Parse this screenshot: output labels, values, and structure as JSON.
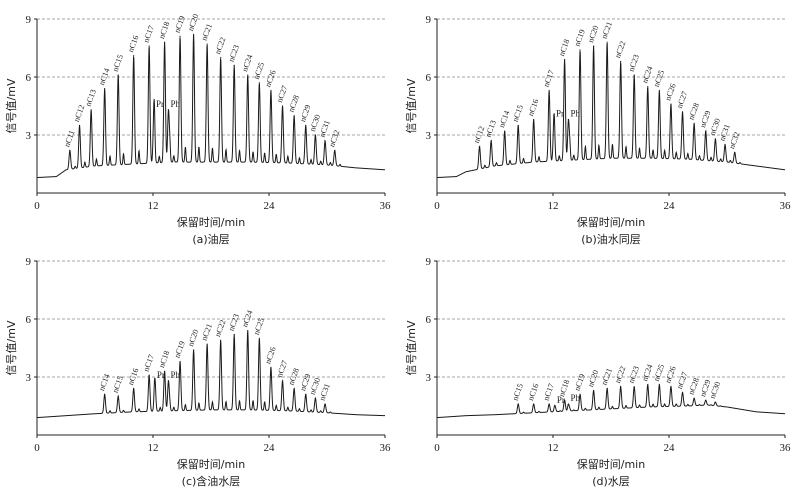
{
  "chart_data": [
    {
      "type": "line",
      "caption": "(a)油层",
      "xlabel": "保留时间/min",
      "ylabel": "信号值/mV",
      "xlim": [
        0,
        36
      ],
      "ylim": [
        0,
        9
      ],
      "xticks": [
        "0",
        "12",
        "24",
        "36"
      ],
      "yticks": [
        "3",
        "6",
        "9"
      ],
      "grid": "dashed horizontal at 3, 6, 9",
      "baseline": {
        "x": [
          0,
          2,
          3,
          6,
          10,
          14,
          18,
          22,
          26,
          30,
          33,
          36
        ],
        "y": [
          0.8,
          0.85,
          1.2,
          1.4,
          1.5,
          1.6,
          1.6,
          1.6,
          1.55,
          1.45,
          1.3,
          1.2
        ]
      },
      "peaks": [
        {
          "label": "nC11",
          "x": 3.4,
          "y": 2.2
        },
        {
          "label": "nC12",
          "x": 4.4,
          "y": 3.5
        },
        {
          "label": "nC13",
          "x": 5.6,
          "y": 4.3
        },
        {
          "label": "nC14",
          "x": 7.0,
          "y": 5.4
        },
        {
          "label": "nC15",
          "x": 8.4,
          "y": 6.1
        },
        {
          "label": "nC16",
          "x": 10.0,
          "y": 7.1
        },
        {
          "label": "nC17",
          "x": 11.6,
          "y": 7.6
        },
        {
          "label": "Pr",
          "x": 12.1,
          "y": 4.3
        },
        {
          "label": "nC18",
          "x": 13.2,
          "y": 7.8
        },
        {
          "label": "Ph",
          "x": 13.6,
          "y": 4.3
        },
        {
          "label": "nC19",
          "x": 14.8,
          "y": 8.1
        },
        {
          "label": "nC20",
          "x": 16.2,
          "y": 8.2
        },
        {
          "label": "nC21",
          "x": 17.6,
          "y": 7.7
        },
        {
          "label": "nC22",
          "x": 19.0,
          "y": 7.0
        },
        {
          "label": "nC23",
          "x": 20.4,
          "y": 6.6
        },
        {
          "label": "nC24",
          "x": 21.8,
          "y": 6.1
        },
        {
          "label": "nC25",
          "x": 23.0,
          "y": 5.7
        },
        {
          "label": "nC26",
          "x": 24.2,
          "y": 5.3
        },
        {
          "label": "nC27",
          "x": 25.4,
          "y": 4.5
        },
        {
          "label": "nC28",
          "x": 26.6,
          "y": 4.0
        },
        {
          "label": "nC29",
          "x": 27.8,
          "y": 3.5
        },
        {
          "label": "nC30",
          "x": 28.8,
          "y": 3.0
        },
        {
          "label": "nC31",
          "x": 29.8,
          "y": 2.7
        },
        {
          "label": "nC32",
          "x": 30.8,
          "y": 2.2
        }
      ]
    },
    {
      "type": "line",
      "caption": "(b)油水同层",
      "xlabel": "保留时间/min",
      "ylabel": "信号值/mV",
      "xlim": [
        0,
        36
      ],
      "ylim": [
        0,
        9
      ],
      "xticks": [
        "0",
        "12",
        "24",
        "36"
      ],
      "yticks": [
        "3",
        "6",
        "9"
      ],
      "grid": "dashed horizontal at 3, 6, 9",
      "baseline": {
        "x": [
          0,
          2,
          3,
          6,
          10,
          14,
          18,
          22,
          26,
          30,
          33,
          36
        ],
        "y": [
          0.8,
          0.85,
          1.1,
          1.4,
          1.6,
          1.7,
          1.8,
          1.8,
          1.75,
          1.6,
          1.4,
          1.2
        ]
      },
      "peaks": [
        {
          "label": "nC12",
          "x": 4.4,
          "y": 2.4
        },
        {
          "label": "nC13",
          "x": 5.6,
          "y": 2.7
        },
        {
          "label": "nC14",
          "x": 7.0,
          "y": 3.2
        },
        {
          "label": "nC15",
          "x": 8.4,
          "y": 3.5
        },
        {
          "label": "nC16",
          "x": 10.0,
          "y": 3.8
        },
        {
          "label": "nC17",
          "x": 11.6,
          "y": 5.3
        },
        {
          "label": "Pr",
          "x": 12.1,
          "y": 3.8
        },
        {
          "label": "nC18",
          "x": 13.2,
          "y": 6.9
        },
        {
          "label": "Ph",
          "x": 13.6,
          "y": 3.8
        },
        {
          "label": "nC19",
          "x": 14.8,
          "y": 7.4
        },
        {
          "label": "nC20",
          "x": 16.2,
          "y": 7.6
        },
        {
          "label": "nC21",
          "x": 17.6,
          "y": 7.8
        },
        {
          "label": "nC22",
          "x": 19.0,
          "y": 6.8
        },
        {
          "label": "nC23",
          "x": 20.4,
          "y": 6.1
        },
        {
          "label": "nC24",
          "x": 21.8,
          "y": 5.5
        },
        {
          "label": "nC25",
          "x": 23.0,
          "y": 5.3
        },
        {
          "label": "nC26",
          "x": 24.2,
          "y": 4.6
        },
        {
          "label": "nC27",
          "x": 25.4,
          "y": 4.2
        },
        {
          "label": "nC28",
          "x": 26.6,
          "y": 3.6
        },
        {
          "label": "nC29",
          "x": 27.8,
          "y": 3.2
        },
        {
          "label": "nC30",
          "x": 28.8,
          "y": 2.8
        },
        {
          "label": "nC31",
          "x": 29.8,
          "y": 2.5
        },
        {
          "label": "nC32",
          "x": 30.8,
          "y": 2.1
        }
      ]
    },
    {
      "type": "line",
      "caption": "(c)含油水层",
      "xlabel": "保留时间/min",
      "ylabel": "信号值/mV",
      "xlim": [
        0,
        36
      ],
      "ylim": [
        0,
        9
      ],
      "xticks": [
        "0",
        "12",
        "24",
        "36"
      ],
      "yticks": [
        "3",
        "6",
        "9"
      ],
      "grid": "dashed horizontal at 3, 6, 9",
      "baseline": {
        "x": [
          0,
          3,
          6,
          10,
          14,
          18,
          22,
          26,
          30,
          33,
          36
        ],
        "y": [
          0.9,
          1.0,
          1.1,
          1.2,
          1.25,
          1.3,
          1.3,
          1.25,
          1.15,
          1.05,
          1.0
        ]
      },
      "peaks": [
        {
          "label": "nC14",
          "x": 7.0,
          "y": 2.1
        },
        {
          "label": "nC15",
          "x": 8.4,
          "y": 2.0
        },
        {
          "label": "nC16",
          "x": 10.0,
          "y": 2.4
        },
        {
          "label": "nC17",
          "x": 11.6,
          "y": 3.1
        },
        {
          "label": "Pr",
          "x": 12.2,
          "y": 2.8
        },
        {
          "label": "nC18",
          "x": 13.2,
          "y": 3.3
        },
        {
          "label": "Ph",
          "x": 13.6,
          "y": 2.8
        },
        {
          "label": "nC19",
          "x": 14.8,
          "y": 3.8
        },
        {
          "label": "nC20",
          "x": 16.2,
          "y": 4.4
        },
        {
          "label": "nC21",
          "x": 17.6,
          "y": 4.7
        },
        {
          "label": "nC22",
          "x": 19.0,
          "y": 4.9
        },
        {
          "label": "nC23",
          "x": 20.4,
          "y": 5.2
        },
        {
          "label": "nC24",
          "x": 21.8,
          "y": 5.4
        },
        {
          "label": "nC25",
          "x": 23.0,
          "y": 5.0
        },
        {
          "label": "nC26",
          "x": 24.2,
          "y": 3.5
        },
        {
          "label": "nC27",
          "x": 25.4,
          "y": 2.8
        },
        {
          "label": "nC28",
          "x": 26.6,
          "y": 2.4
        },
        {
          "label": "nC29",
          "x": 27.8,
          "y": 2.1
        },
        {
          "label": "nC30",
          "x": 28.8,
          "y": 1.9
        },
        {
          "label": "nC31",
          "x": 29.8,
          "y": 1.6
        }
      ]
    },
    {
      "type": "line",
      "caption": "(d)水层",
      "xlabel": "保留时间/min",
      "ylabel": "信号值/mV",
      "xlim": [
        0,
        36
      ],
      "ylim": [
        0,
        9
      ],
      "xticks": [
        "0",
        "12",
        "24",
        "36"
      ],
      "yticks": [
        "3",
        "6",
        "9"
      ],
      "grid": "dashed horizontal at 3, 6, 9",
      "baseline": {
        "x": [
          0,
          3,
          6,
          10,
          14,
          18,
          22,
          26,
          28,
          30,
          33,
          36
        ],
        "y": [
          0.9,
          1.0,
          1.05,
          1.15,
          1.25,
          1.35,
          1.45,
          1.5,
          1.55,
          1.45,
          1.2,
          1.1
        ]
      },
      "peaks": [
        {
          "label": "nC15",
          "x": 8.4,
          "y": 1.6
        },
        {
          "label": "nC16",
          "x": 10.0,
          "y": 1.6
        },
        {
          "label": "nC17",
          "x": 11.6,
          "y": 1.6
        },
        {
          "label": "Pr",
          "x": 12.2,
          "y": 1.5
        },
        {
          "label": "nC18",
          "x": 13.2,
          "y": 1.8
        },
        {
          "label": "Ph",
          "x": 13.6,
          "y": 1.6
        },
        {
          "label": "nC19",
          "x": 14.8,
          "y": 2.1
        },
        {
          "label": "nC20",
          "x": 16.2,
          "y": 2.3
        },
        {
          "label": "nC21",
          "x": 17.6,
          "y": 2.4
        },
        {
          "label": "nC22",
          "x": 19.0,
          "y": 2.5
        },
        {
          "label": "nC23",
          "x": 20.4,
          "y": 2.5
        },
        {
          "label": "nC24",
          "x": 21.8,
          "y": 2.6
        },
        {
          "label": "nC25",
          "x": 23.0,
          "y": 2.6
        },
        {
          "label": "nC26",
          "x": 24.2,
          "y": 2.5
        },
        {
          "label": "nC27",
          "x": 25.4,
          "y": 2.2
        },
        {
          "label": "nC28",
          "x": 26.6,
          "y": 1.9
        },
        {
          "label": "nC29",
          "x": 27.8,
          "y": 1.8
        },
        {
          "label": "nC30",
          "x": 28.8,
          "y": 1.7
        }
      ]
    }
  ]
}
